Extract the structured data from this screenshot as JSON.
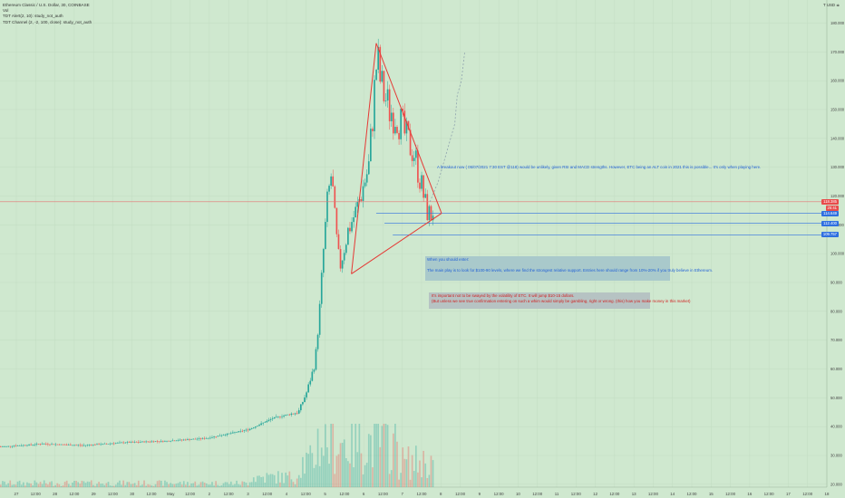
{
  "legend": {
    "symbol_line": "Ethereum Classic / U.S. Dollar, 30, COINBASE",
    "vol_line": "Vol",
    "indicator1": "TDT Alert(2, 10): study_not_auth",
    "indicator2": "TDT Channel (2, -2, 100, close): study_not_auth"
  },
  "top_right": {
    "currency": "T USD ≑",
    "settings_icon": "gear-icon"
  },
  "annotations": {
    "breakout": "A breakout now ( 05/07/2021 7:30 EST @118) would be unlikely, given RSI and MACD strengths. However, ETC being an ALT coin in 2021 this is possible... It's only when playing here.",
    "enter_title": "When you should enter:",
    "enter_body": "The main play is to look for $100-90 levels, where we find the strongest relative support. Entries here should range from 10%-20% if you truly believe in Ethereum.",
    "warn_line1": "It's important not to be swayed by the volatility of ETC. It will jump $10-15 dollars.",
    "warn_line2": "(But unless we see true confirmation entering on such a whim would simply be gambling, right or wrong. (this) how you make money in this market)"
  },
  "price_tags": [
    {
      "price": 118,
      "label": "118.385",
      "color": "#e84b4b"
    },
    {
      "price": 115.6,
      "label": "25:41",
      "color": "#e84b4b"
    },
    {
      "price": 114,
      "label": "114.649",
      "color": "#2f6fe0"
    },
    {
      "price": 110.5,
      "label": "112.400",
      "color": "#2f6fe0"
    },
    {
      "price": 106.5,
      "label": "109.757",
      "color": "#2f6fe0"
    }
  ],
  "colors": {
    "background": "#cfe8cf",
    "up": "#26a69a",
    "down": "#ef5350",
    "trend": "#e53935",
    "hline": "#2f6fe0",
    "projection": "#90a4ae"
  },
  "chart_data": {
    "type": "candlestick",
    "symbol": "Ethereum Classic / U.S. Dollar",
    "interval": "30",
    "exchange": "COINBASE",
    "y_axis": {
      "ticks": [
        20,
        30,
        40,
        50,
        60,
        70,
        80,
        90,
        100,
        110,
        120,
        130,
        140,
        150,
        160,
        170,
        180
      ],
      "labels": [
        "20.000",
        "30.000",
        "40.000",
        "50.000",
        "60.000",
        "70.000",
        "80.000",
        "90.000",
        "100.000",
        "110.000",
        "120.000",
        "130.000",
        "140.000",
        "150.000",
        "160.000",
        "170.000",
        "180.000"
      ],
      "range": [
        19,
        188
      ]
    },
    "x_axis": {
      "labels": [
        "27",
        "12:00",
        "28",
        "12:00",
        "29",
        "12:00",
        "30",
        "12:00",
        "May",
        "12:00",
        "2",
        "12:00",
        "3",
        "12:00",
        "4",
        "12:00",
        "5",
        "12:00",
        "6",
        "12:00",
        "7",
        "12:00",
        "8",
        "12:00",
        "9",
        "12:00",
        "10",
        "12:00",
        "11",
        "12:00",
        "12",
        "12:00",
        "13",
        "12:00",
        "14",
        "12:00",
        "15",
        "12:00",
        "16",
        "12:00",
        "17",
        "12:00",
        "18"
      ]
    },
    "price_path": [
      [
        0,
        33
      ],
      [
        0.05,
        34
      ],
      [
        0.1,
        33.5
      ],
      [
        0.15,
        34.5
      ],
      [
        0.2,
        35
      ],
      [
        0.25,
        36
      ],
      [
        0.3,
        39
      ],
      [
        0.33,
        43
      ],
      [
        0.36,
        45
      ],
      [
        0.37,
        52
      ],
      [
        0.38,
        62
      ],
      [
        0.385,
        78
      ],
      [
        0.39,
        100
      ],
      [
        0.395,
        118
      ],
      [
        0.4,
        128
      ],
      [
        0.405,
        108
      ],
      [
        0.41,
        95
      ],
      [
        0.42,
        108
      ],
      [
        0.43,
        115
      ],
      [
        0.44,
        125
      ],
      [
        0.445,
        130
      ],
      [
        0.455,
        168
      ],
      [
        0.46,
        158
      ],
      [
        0.47,
        150
      ],
      [
        0.48,
        148
      ],
      [
        0.49,
        140
      ],
      [
        0.5,
        135
      ],
      [
        0.51,
        122
      ],
      [
        0.515,
        115
      ],
      [
        0.52,
        113
      ],
      [
        0.525,
        117
      ]
    ],
    "trendlines": [
      {
        "from": [
          0.425,
          93
        ],
        "to": [
          0.455,
          173
        ]
      },
      {
        "from": [
          0.455,
          173
        ],
        "to": [
          0.534,
          114
        ]
      },
      {
        "from": [
          0.425,
          93
        ],
        "to": [
          0.534,
          114
        ]
      }
    ],
    "horizontal_levels": [
      118,
      114,
      110.5,
      106.5
    ],
    "projection": [
      [
        0.52,
        118
      ],
      [
        0.53,
        125
      ],
      [
        0.54,
        135
      ],
      [
        0.55,
        145
      ],
      [
        0.553,
        155
      ],
      [
        0.558,
        160
      ],
      [
        0.562,
        170
      ]
    ],
    "volume_max_bar": 0.4
  }
}
